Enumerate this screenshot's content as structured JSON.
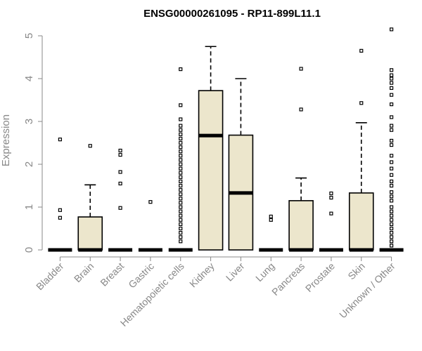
{
  "chart_data": {
    "type": "boxplot",
    "title": "ENSG00000261095 - RP11-899L11.1",
    "ylabel": "Expression",
    "xlabel": "",
    "ylim": [
      0,
      5.2
    ],
    "yticks": [
      0,
      1,
      2,
      3,
      4,
      5
    ],
    "box_color": "#ece6cc",
    "grid": false,
    "categories": [
      "Bladder",
      "Brain",
      "Breast",
      "Gastric",
      "Hematopoietic cells",
      "Kidney",
      "Liver",
      "Lung",
      "Pancreas",
      "Prostate",
      "Skin",
      "Unknown / Other"
    ],
    "boxes": [
      {
        "q1": 0,
        "median": 0,
        "q3": 0,
        "whisker_low": 0,
        "whisker_high": 0,
        "outliers": [
          0.75,
          0.93,
          2.58
        ]
      },
      {
        "q1": 0,
        "median": 0,
        "q3": 0.77,
        "whisker_low": 0,
        "whisker_high": 1.52,
        "outliers": [
          2.43
        ]
      },
      {
        "q1": 0,
        "median": 0,
        "q3": 0,
        "whisker_low": 0,
        "whisker_high": 0,
        "outliers": [
          0.98,
          1.55,
          1.82,
          2.22,
          2.32
        ]
      },
      {
        "q1": 0,
        "median": 0,
        "q3": 0,
        "whisker_low": 0,
        "whisker_high": 0,
        "outliers": [
          1.12
        ]
      },
      {
        "q1": 0,
        "median": 0,
        "q3": 0,
        "whisker_low": 0,
        "whisker_high": 0,
        "outliers": [
          0.2,
          0.3,
          0.4,
          0.5,
          0.6,
          0.7,
          0.8,
          0.9,
          1.0,
          1.1,
          1.2,
          1.3,
          1.4,
          1.5,
          1.6,
          1.7,
          1.8,
          1.9,
          2.0,
          2.1,
          2.2,
          2.3,
          2.4,
          2.5,
          2.6,
          2.7,
          2.8,
          2.9,
          3.05,
          3.38,
          4.22
        ]
      },
      {
        "q1": 0,
        "median": 2.67,
        "q3": 3.72,
        "whisker_low": 0,
        "whisker_high": 4.75,
        "outliers": []
      },
      {
        "q1": 0,
        "median": 1.33,
        "q3": 2.68,
        "whisker_low": 0,
        "whisker_high": 4.0,
        "outliers": []
      },
      {
        "q1": 0,
        "median": 0,
        "q3": 0,
        "whisker_low": 0,
        "whisker_high": 0,
        "outliers": [
          0.7,
          0.78
        ]
      },
      {
        "q1": 0,
        "median": 0,
        "q3": 1.15,
        "whisker_low": 0,
        "whisker_high": 1.68,
        "outliers": [
          3.28,
          4.23
        ]
      },
      {
        "q1": 0,
        "median": 0,
        "q3": 0,
        "whisker_low": 0,
        "whisker_high": 0,
        "outliers": [
          0.85,
          1.22,
          1.32
        ]
      },
      {
        "q1": 0,
        "median": 0,
        "q3": 1.33,
        "whisker_low": 0,
        "whisker_high": 2.97,
        "outliers": [
          3.43,
          4.65
        ]
      },
      {
        "q1": 0,
        "median": 0,
        "q3": 0,
        "whisker_low": 0,
        "whisker_high": 0,
        "outliers": [
          0.1,
          0.2,
          0.3,
          0.4,
          0.5,
          0.6,
          0.7,
          0.8,
          0.9,
          1.0,
          1.15,
          1.25,
          1.35,
          1.5,
          1.6,
          1.75,
          1.9,
          2.05,
          2.2,
          2.45,
          2.55,
          2.8,
          2.9,
          3.1,
          3.4,
          3.62,
          3.78,
          3.9,
          4.0,
          4.08,
          4.2,
          5.15
        ]
      }
    ]
  }
}
